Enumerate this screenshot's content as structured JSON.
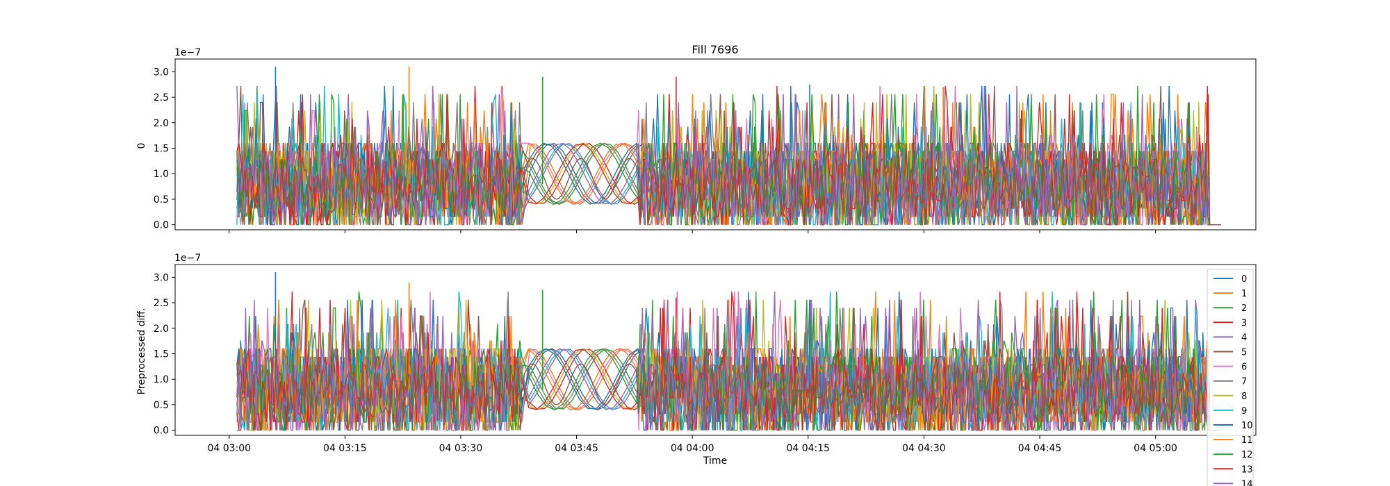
{
  "chart_data": [
    {
      "type": "line",
      "title": "Fill 7696",
      "ylabel": "0",
      "xlabel": "",
      "y_offset_label": "1e−7",
      "ylim": [
        -0.1,
        3.25
      ],
      "yticks": [
        0.0,
        0.5,
        1.0,
        1.5,
        2.0,
        2.5,
        3.0
      ],
      "ytick_labels": [
        "0.0",
        "0.5",
        "1.0",
        "1.5",
        "2.0",
        "2.5",
        "3.0"
      ],
      "xlim": [
        "04 02:53",
        "04 05:13"
      ],
      "xticks": [
        "04 03:00",
        "04 03:15",
        "04 03:30",
        "04 03:45",
        "04 04:00",
        "04 04:15",
        "04 04:30",
        "04 04:45",
        "04 05:00"
      ],
      "xtick_labels_shown": false,
      "data_range": {
        "start": "04 03:01",
        "end": "04 05:07",
        "tail_zero_until": "04 05:08:30"
      },
      "typical_y_range": [
        0.0,
        3.1
      ],
      "peak_values": [
        3.1,
        3.1,
        2.9,
        2.9,
        2.75,
        2.7
      ],
      "grid": false,
      "legend": "none"
    },
    {
      "type": "line",
      "title": "",
      "ylabel": "Preprocessed diff.",
      "xlabel": "Time",
      "y_offset_label": "1e−7",
      "ylim": [
        -0.1,
        3.25
      ],
      "yticks": [
        0.0,
        0.5,
        1.0,
        1.5,
        2.0,
        2.5,
        3.0
      ],
      "ytick_labels": [
        "0.0",
        "0.5",
        "1.0",
        "1.5",
        "2.0",
        "2.5",
        "3.0"
      ],
      "xlim": [
        "04 02:53",
        "04 05:13"
      ],
      "xticks": [
        "04 03:00",
        "04 03:15",
        "04 03:30",
        "04 03:45",
        "04 04:00",
        "04 04:15",
        "04 04:30",
        "04 04:45",
        "04 05:00"
      ],
      "xtick_labels": [
        "04 03:00",
        "04 03:15",
        "04 03:30",
        "04 03:45",
        "04 04:00",
        "04 04:15",
        "04 04:30",
        "04 04:45",
        "04 05:00"
      ],
      "data_range": {
        "start": "04 03:01",
        "end": "04 05:07",
        "tail_zero_until": "04 05:08:30"
      },
      "typical_y_range": [
        0.0,
        3.1
      ],
      "peak_values": [
        3.1,
        2.9,
        2.75,
        2.6,
        2.55
      ],
      "grid": false,
      "legend": "right (extends below axes)",
      "series": [
        {
          "name": "0",
          "color": "#1f77b4"
        },
        {
          "name": "1",
          "color": "#ff7f0e"
        },
        {
          "name": "2",
          "color": "#2ca02c"
        },
        {
          "name": "3",
          "color": "#d62728"
        },
        {
          "name": "4",
          "color": "#9467bd"
        },
        {
          "name": "5",
          "color": "#8c564b"
        },
        {
          "name": "6",
          "color": "#e377c2"
        },
        {
          "name": "7",
          "color": "#7f7f7f"
        },
        {
          "name": "8",
          "color": "#bcbd22"
        },
        {
          "name": "9",
          "color": "#17becf"
        },
        {
          "name": "10",
          "color": "#1f77b4"
        },
        {
          "name": "11",
          "color": "#ff7f0e"
        },
        {
          "name": "12",
          "color": "#2ca02c"
        },
        {
          "name": "13",
          "color": "#d62728"
        },
        {
          "name": "14",
          "color": "#9467bd"
        }
      ]
    }
  ]
}
